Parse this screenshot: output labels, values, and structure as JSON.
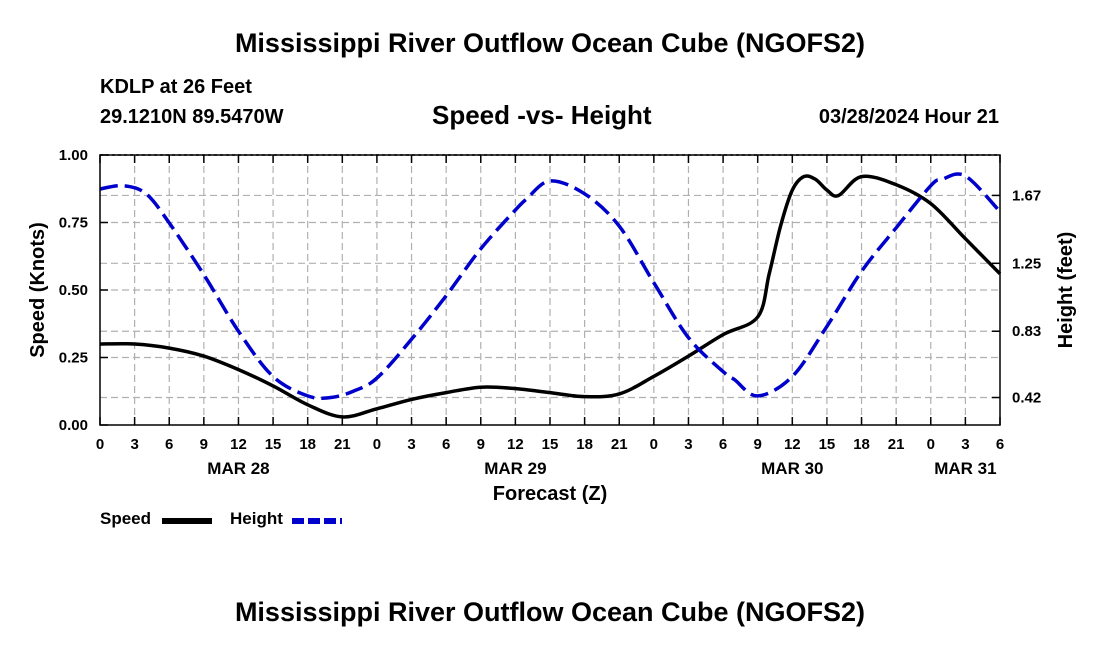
{
  "main_title": "Mississippi River Outflow Ocean Cube (NGOFS2)",
  "footer_title": "Mississippi River Outflow Ocean Cube (NGOFS2)",
  "station": "KDLP at 26 Feet",
  "coordinates": "29.1210N  89.5470W",
  "datetime": "03/28/2024 Hour 21",
  "colors": {
    "speed": "#000000",
    "height": "#0000cc",
    "grid": "#b0b0b0"
  },
  "legend": [
    {
      "label": "Speed",
      "color": "#000000",
      "dashed": false
    },
    {
      "label": "Height",
      "color": "#0000cc",
      "dashed": true
    }
  ],
  "chart_data": {
    "type": "line",
    "title": "Speed -vs- Height",
    "xlabel": "Forecast (Z)",
    "ylabel": "Speed (Knots)",
    "y2label": "Height (feet)",
    "xlim": [
      0,
      78
    ],
    "ylim": [
      0,
      1.0
    ],
    "y2lim": [
      0.25,
      1.92
    ],
    "xtick_positions": [
      0,
      3,
      6,
      9,
      12,
      15,
      18,
      21,
      24,
      27,
      30,
      33,
      36,
      39,
      42,
      45,
      48,
      51,
      54,
      57,
      60,
      63,
      66,
      69,
      72,
      75,
      78
    ],
    "xtick_labels": [
      "0",
      "3",
      "6",
      "9",
      "12",
      "15",
      "18",
      "21",
      "0",
      "3",
      "6",
      "9",
      "12",
      "15",
      "18",
      "21",
      "0",
      "3",
      "6",
      "9",
      "12",
      "15",
      "18",
      "21",
      "0",
      "3",
      "6"
    ],
    "date_labels": [
      {
        "x": 12,
        "label": "MAR 28"
      },
      {
        "x": 36,
        "label": "MAR 29"
      },
      {
        "x": 60,
        "label": "MAR 30"
      },
      {
        "x": 75,
        "label": "MAR 31"
      }
    ],
    "yticks": [
      "0.00",
      "0.25",
      "0.50",
      "0.75",
      "1.00"
    ],
    "ytick_values": [
      0,
      0.25,
      0.5,
      0.75,
      1.0
    ],
    "y2ticks": [
      "0.42",
      "0.83",
      "1.25",
      "1.67"
    ],
    "y2tick_values": [
      0.42,
      0.83,
      1.25,
      1.67
    ],
    "series": [
      {
        "name": "Speed",
        "axis": "left",
        "x": [
          0,
          3,
          6,
          9,
          12,
          15,
          18,
          21,
          24,
          27,
          30,
          33,
          36,
          39,
          42,
          45,
          48,
          51,
          54,
          57,
          58,
          59,
          60,
          61,
          62,
          63,
          64,
          66,
          69,
          72,
          75,
          78
        ],
        "values": [
          0.3,
          0.3,
          0.285,
          0.255,
          0.205,
          0.145,
          0.075,
          0.03,
          0.06,
          0.095,
          0.12,
          0.14,
          0.135,
          0.12,
          0.105,
          0.115,
          0.18,
          0.255,
          0.335,
          0.4,
          0.56,
          0.74,
          0.87,
          0.92,
          0.91,
          0.87,
          0.85,
          0.92,
          0.89,
          0.82,
          0.69,
          0.56
        ]
      },
      {
        "name": "Height",
        "axis": "right",
        "x": [
          0,
          2,
          4,
          6,
          9,
          12,
          15,
          18,
          20,
          22,
          24,
          27,
          30,
          33,
          36,
          37,
          39,
          42,
          45,
          48,
          51,
          54,
          55,
          57,
          60,
          63,
          66,
          69,
          72,
          73,
          75,
          78
        ],
        "values": [
          1.71,
          1.73,
          1.68,
          1.5,
          1.18,
          0.83,
          0.55,
          0.43,
          0.42,
          0.46,
          0.54,
          0.78,
          1.05,
          1.34,
          1.58,
          1.65,
          1.76,
          1.68,
          1.48,
          1.13,
          0.79,
          0.58,
          0.53,
          0.43,
          0.55,
          0.86,
          1.2,
          1.47,
          1.73,
          1.77,
          1.79,
          1.57
        ]
      }
    ]
  }
}
